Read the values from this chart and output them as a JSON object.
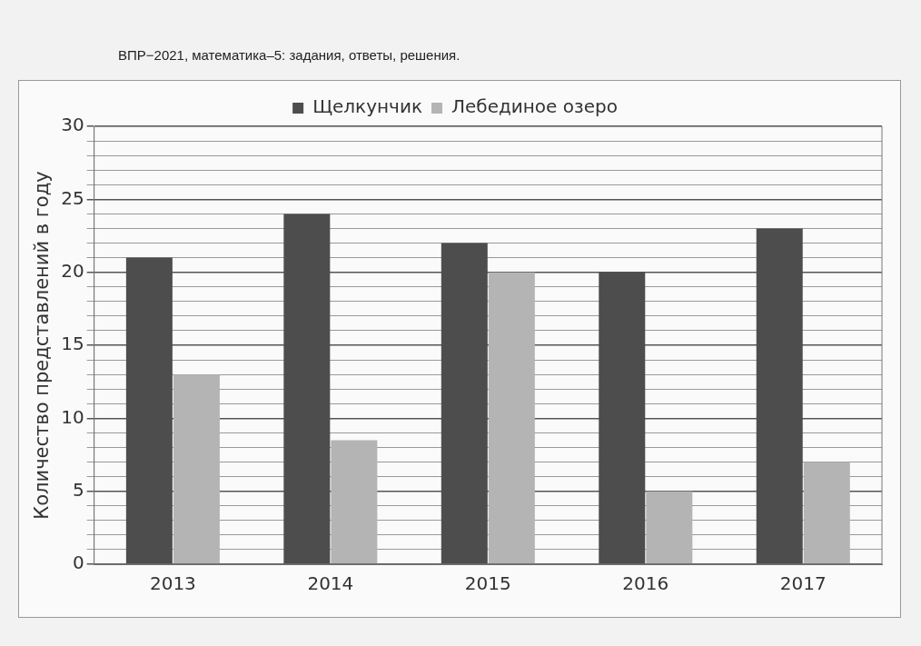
{
  "chart_data": {
    "type": "bar",
    "title": "ВПР−2021, математика–5: задания, ответы, решения.",
    "ylabel": "Количество представлений в году",
    "categories": [
      "2013",
      "2014",
      "2015",
      "2016",
      "2017"
    ],
    "series": [
      {
        "name": "Щелкунчик",
        "color": "#4d4d4d",
        "values": [
          21,
          24,
          22,
          20,
          23
        ]
      },
      {
        "name": "Лебединое озеро",
        "color": "#b4b4b4",
        "values": [
          13,
          8.5,
          20,
          5,
          7
        ]
      }
    ],
    "ylim": [
      0,
      30
    ],
    "yticks": [
      0,
      {
        "value": 1,
        "label": null
      },
      {
        "value": 2,
        "label": null
      },
      {
        "value": 3,
        "label": null
      },
      {
        "value": 4,
        "label": null
      },
      5,
      {
        "value": 6,
        "label": null
      },
      {
        "value": 7,
        "label": null
      },
      {
        "value": 8,
        "label": null
      },
      {
        "value": 9,
        "label": null
      },
      10,
      {
        "value": 11,
        "label": null
      },
      {
        "value": 12,
        "label": null
      },
      {
        "value": 13,
        "label": null
      },
      {
        "value": 14,
        "label": null
      },
      15,
      {
        "value": 16,
        "label": null
      },
      {
        "value": 17,
        "label": null
      },
      {
        "value": 18,
        "label": null
      },
      {
        "value": 19,
        "label": null
      },
      20,
      {
        "value": 21,
        "label": null
      },
      {
        "value": 22,
        "label": null
      },
      {
        "value": 23,
        "label": null
      },
      {
        "value": 24,
        "label": null
      },
      25,
      {
        "value": 26,
        "label": null
      },
      {
        "value": 27,
        "label": null
      },
      {
        "value": 28,
        "label": null
      },
      {
        "value": 29,
        "label": null
      },
      30
    ],
    "grid": "y",
    "legend": "top"
  }
}
